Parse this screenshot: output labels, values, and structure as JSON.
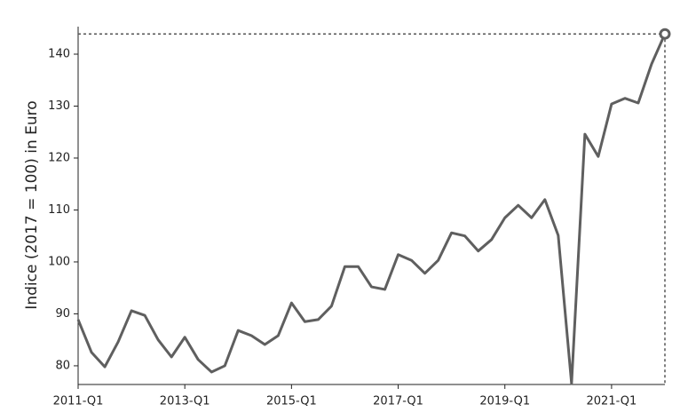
{
  "chart_data": {
    "type": "line",
    "y_label": "Indice (2017 = 100) in Euro",
    "categories": [
      "2011-Q1",
      null,
      null,
      null,
      null,
      null,
      null,
      null,
      "2013-Q1",
      null,
      null,
      null,
      null,
      null,
      null,
      null,
      "2015-Q1",
      null,
      null,
      null,
      null,
      null,
      null,
      null,
      "2017-Q1",
      null,
      null,
      null,
      null,
      null,
      null,
      null,
      "2019-Q1",
      null,
      null,
      null,
      null,
      null,
      null,
      null,
      "2021-Q1",
      null,
      null,
      null,
      null
    ],
    "series": [
      {
        "color": "#5f5f5f",
        "values": [
          88.9,
          82.6,
          79.8,
          84.6,
          90.6,
          89.7,
          85.0,
          81.7,
          85.5,
          81.2,
          78.8,
          80.0,
          86.8,
          85.8,
          84.1,
          85.8,
          92.1,
          88.5,
          88.9,
          91.5,
          99.1,
          99.1,
          95.2,
          94.7,
          101.4,
          100.3,
          97.8,
          100.3,
          105.6,
          105.0,
          102.1,
          104.3,
          108.5,
          110.9,
          108.5,
          112.0,
          105.1,
          76.6,
          124.6,
          120.3,
          130.4,
          131.5,
          130.6,
          138.1,
          143.9
        ]
      }
    ],
    "ylim": [
      76.4,
      145.3
    ],
    "yticks": [
      80,
      90,
      100,
      110,
      120,
      130,
      140
    ]
  }
}
